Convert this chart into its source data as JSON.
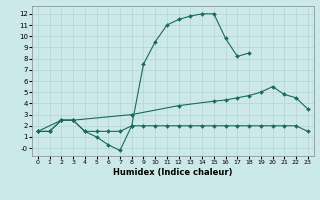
{
  "xlabel": "Humidex (Indice chaleur)",
  "bg_color": "#cce8e8",
  "grid_color": "#b8d4d0",
  "line_color": "#1a6b5a",
  "xlim": [
    -0.5,
    23.5
  ],
  "ylim": [
    -0.7,
    12.7
  ],
  "xticks": [
    0,
    1,
    2,
    3,
    4,
    5,
    6,
    7,
    8,
    9,
    10,
    11,
    12,
    13,
    14,
    15,
    16,
    17,
    18,
    19,
    20,
    21,
    22,
    23
  ],
  "yticks": [
    0,
    1,
    2,
    3,
    4,
    5,
    6,
    7,
    8,
    9,
    10,
    11,
    12
  ],
  "curve1_x": [
    0,
    1,
    2,
    3,
    4,
    5,
    6,
    7,
    8,
    9,
    10,
    11,
    12,
    13,
    14,
    15,
    16,
    17,
    18
  ],
  "curve1_y": [
    1.5,
    1.5,
    2.5,
    2.5,
    1.5,
    1.0,
    0.3,
    -0.2,
    2.0,
    7.5,
    9.5,
    11.0,
    11.5,
    11.8,
    12.0,
    12.0,
    9.8,
    8.2,
    8.5
  ],
  "curve2_x": [
    0,
    2,
    3,
    8,
    12,
    15,
    16,
    17,
    18,
    19,
    20,
    21,
    22,
    23
  ],
  "curve2_y": [
    1.5,
    2.5,
    2.5,
    3.0,
    3.8,
    4.2,
    4.3,
    4.5,
    4.7,
    5.0,
    5.5,
    4.8,
    4.5,
    3.5
  ],
  "curve3_x": [
    0,
    1,
    2,
    3,
    4,
    5,
    6,
    7,
    8,
    9,
    10,
    11,
    12,
    13,
    14,
    15,
    16,
    17,
    18,
    19,
    20,
    21,
    22,
    23
  ],
  "curve3_y": [
    1.5,
    1.5,
    2.5,
    2.5,
    1.5,
    1.5,
    1.5,
    1.5,
    2.0,
    2.0,
    2.0,
    2.0,
    2.0,
    2.0,
    2.0,
    2.0,
    2.0,
    2.0,
    2.0,
    2.0,
    2.0,
    2.0,
    2.0,
    1.5
  ]
}
